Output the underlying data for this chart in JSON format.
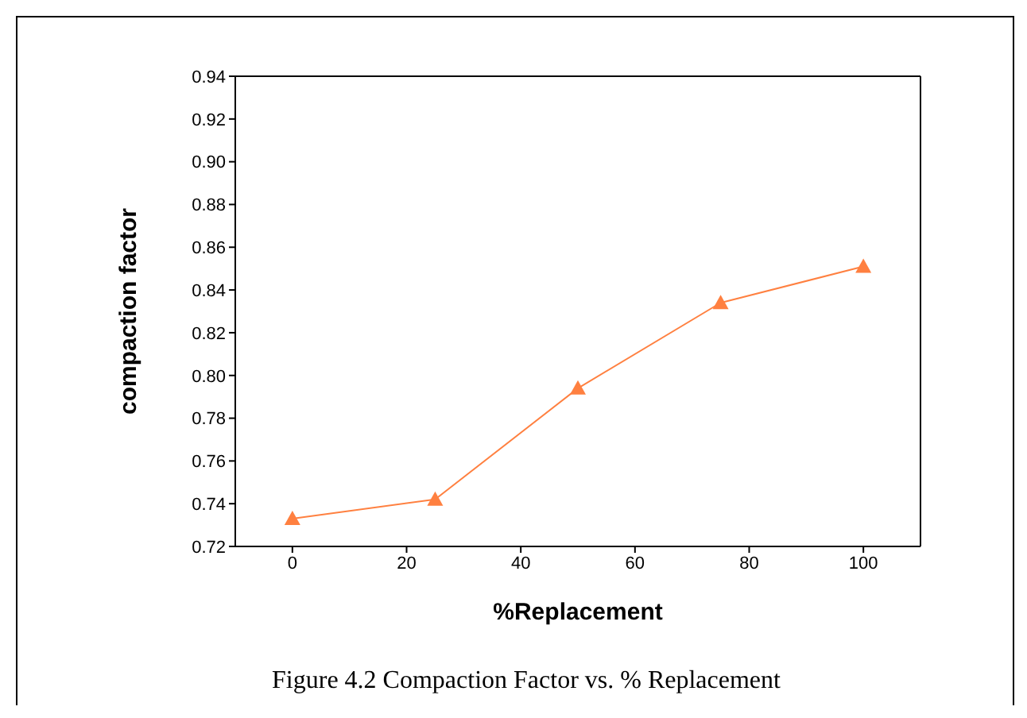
{
  "chart_data": {
    "type": "line",
    "xlabel": "%Replacement",
    "ylabel": "compaction factor",
    "x": [
      0,
      25,
      50,
      75,
      100
    ],
    "series": [
      {
        "color": "#ff8040",
        "values": [
          0.733,
          0.742,
          0.794,
          0.834,
          0.851
        ]
      }
    ],
    "xlim": [
      -10,
      110
    ],
    "xticks": [
      0,
      20,
      40,
      60,
      80,
      100
    ],
    "ylim": [
      0.72,
      0.94
    ],
    "yticks": [
      {
        "value": 0.72,
        "label": "0.72"
      },
      {
        "value": 0.74,
        "label": "0.74"
      },
      {
        "value": 0.76,
        "label": "0.76"
      },
      {
        "value": 0.78,
        "label": "0.78"
      },
      {
        "value": 0.8,
        "label": "0.80"
      },
      {
        "value": 0.82,
        "label": "0.82"
      },
      {
        "value": 0.84,
        "label": "0.84"
      },
      {
        "value": 0.86,
        "label": "0.86"
      },
      {
        "value": 0.88,
        "label": "0.88"
      },
      {
        "value": 0.9,
        "label": "0.90"
      },
      {
        "value": 0.92,
        "label": "0.92"
      },
      {
        "value": 0.94,
        "label": "0.94"
      }
    ],
    "marker": "triangle",
    "line_style": "solid",
    "grid": false,
    "legend": false,
    "annotations": [
      "Figure 4.2 Compaction Factor vs. % Replacement"
    ]
  }
}
